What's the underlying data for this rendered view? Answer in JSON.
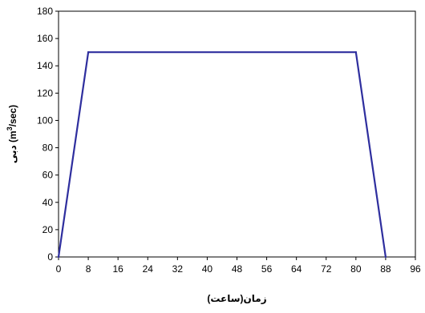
{
  "chart_data": {
    "type": "line",
    "xlabel": "زمان(ساعت)",
    "ylabel": {
      "prefix": "دبی (m",
      "superscript": "3",
      "suffix": "/sec)"
    },
    "xlim": [
      0,
      96
    ],
    "ylim": [
      0,
      180
    ],
    "x_ticks": [
      0,
      8,
      16,
      24,
      32,
      40,
      48,
      56,
      64,
      72,
      80,
      88,
      96
    ],
    "y_ticks": [
      0,
      20,
      40,
      60,
      80,
      100,
      120,
      140,
      160,
      180
    ],
    "grid": false,
    "legend": "none",
    "series": [
      {
        "color": "#2e2e9e",
        "x": [
          0,
          8,
          80,
          88
        ],
        "y": [
          0,
          150,
          150,
          0
        ]
      }
    ]
  }
}
